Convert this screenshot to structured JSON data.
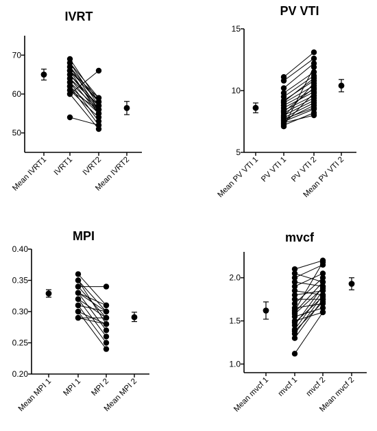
{
  "chart_data": [
    {
      "type": "scatter",
      "title": "IVRT",
      "ylim": [
        45,
        75
      ],
      "yticks": [
        50,
        60,
        70
      ],
      "categories": [
        "Mean IVRT1",
        "IVRT1",
        "IVRT2",
        "Mean IVRT2"
      ],
      "means": [
        {
          "category": "Mean IVRT1",
          "value": 65.0,
          "low": 63.6,
          "high": 66.4
        },
        {
          "category": "Mean IVRT2",
          "value": 56.4,
          "low": 54.7,
          "high": 58.1
        }
      ],
      "pairs": [
        [
          69,
          58
        ],
        [
          68,
          59
        ],
        [
          68,
          57
        ],
        [
          67,
          58
        ],
        [
          67,
          56
        ],
        [
          66,
          55
        ],
        [
          66,
          58
        ],
        [
          65,
          57
        ],
        [
          65,
          56
        ],
        [
          64,
          55
        ],
        [
          64,
          57
        ],
        [
          63,
          53
        ],
        [
          63,
          56
        ],
        [
          62,
          52
        ],
        [
          62,
          55
        ],
        [
          61,
          56
        ],
        [
          61,
          54
        ],
        [
          60,
          51
        ],
        [
          60,
          66
        ],
        [
          54,
          52
        ],
        [
          66,
          59
        ]
      ]
    },
    {
      "type": "scatter",
      "title": "PV VTI",
      "ylim": [
        5,
        15
      ],
      "yticks": [
        5,
        10,
        15
      ],
      "categories": [
        "Mean PV VTI 1",
        "PV VTI 1",
        "PV VTI 2",
        "Mean PV VTI 2"
      ],
      "means": [
        {
          "category": "Mean PV VTI 1",
          "value": 8.6,
          "low": 8.2,
          "high": 9.0
        },
        {
          "category": "Mean PV VTI 2",
          "value": 10.4,
          "low": 9.9,
          "high": 10.9
        }
      ],
      "pairs": [
        [
          11.1,
          13.1
        ],
        [
          10.8,
          12.6
        ],
        [
          10.2,
          12.2
        ],
        [
          9.8,
          11.5
        ],
        [
          9.5,
          11.2
        ],
        [
          9.2,
          10.8
        ],
        [
          9.0,
          10.4
        ],
        [
          8.8,
          10.1
        ],
        [
          8.6,
          9.9
        ],
        [
          8.4,
          9.6
        ],
        [
          8.2,
          9.4
        ],
        [
          8.0,
          9.2
        ],
        [
          7.9,
          10.6
        ],
        [
          7.8,
          9.0
        ],
        [
          7.6,
          8.8
        ],
        [
          7.5,
          8.5
        ],
        [
          7.4,
          8.0
        ],
        [
          7.3,
          9.8
        ],
        [
          7.2,
          8.2
        ],
        [
          7.1,
          11.9
        ],
        [
          8.3,
          10.2
        ],
        [
          9.1,
          11.0
        ],
        [
          7.7,
          8.6
        ]
      ]
    },
    {
      "type": "scatter",
      "title": "MPI",
      "ylim": [
        0.2,
        0.4
      ],
      "yticks": [
        0.2,
        0.25,
        0.3,
        0.35,
        0.4
      ],
      "ytick_labels": [
        "0.20",
        "0.25",
        "0.30",
        "0.35",
        "0.40"
      ],
      "categories": [
        "Mean MPI 1",
        "MPI 1",
        "MPI 2",
        "Mean MPI 2"
      ],
      "means": [
        {
          "category": "Mean MPI 1",
          "value": 0.329,
          "low": 0.323,
          "high": 0.335
        },
        {
          "category": "Mean MPI 2",
          "value": 0.291,
          "low": 0.284,
          "high": 0.299
        }
      ],
      "pairs": [
        [
          0.36,
          0.31
        ],
        [
          0.35,
          0.3
        ],
        [
          0.35,
          0.28
        ],
        [
          0.34,
          0.34
        ],
        [
          0.34,
          0.29
        ],
        [
          0.33,
          0.3
        ],
        [
          0.33,
          0.27
        ],
        [
          0.32,
          0.29
        ],
        [
          0.32,
          0.26
        ],
        [
          0.31,
          0.3
        ],
        [
          0.31,
          0.25
        ],
        [
          0.3,
          0.28
        ],
        [
          0.3,
          0.24
        ],
        [
          0.29,
          0.29
        ],
        [
          0.33,
          0.31
        ],
        [
          0.29,
          0.28
        ]
      ]
    },
    {
      "type": "scatter",
      "title": "mvcf",
      "ylim": [
        0.9,
        2.3
      ],
      "yticks": [
        1.0,
        1.5,
        2.0
      ],
      "ytick_labels": [
        "1.0",
        "1.5",
        "2.0"
      ],
      "categories": [
        "Mean mvcf 1",
        "mvcf 1",
        "mvcf 2",
        "Mean mvcf 2"
      ],
      "means": [
        {
          "category": "Mean mvcf 1",
          "value": 1.62,
          "low": 1.52,
          "high": 1.72
        },
        {
          "category": "Mean mvcf 2",
          "value": 1.93,
          "low": 1.86,
          "high": 2.0
        }
      ],
      "pairs": [
        [
          2.1,
          2.2
        ],
        [
          2.05,
          1.95
        ],
        [
          2.0,
          2.15
        ],
        [
          1.95,
          1.9
        ],
        [
          1.9,
          2.05
        ],
        [
          1.85,
          1.8
        ],
        [
          1.8,
          1.85
        ],
        [
          1.75,
          1.75
        ],
        [
          1.7,
          2.0
        ],
        [
          1.65,
          1.7
        ],
        [
          1.6,
          1.95
        ],
        [
          1.55,
          1.65
        ],
        [
          1.5,
          1.6
        ],
        [
          1.45,
          1.9
        ],
        [
          1.4,
          1.85
        ],
        [
          1.35,
          1.8
        ],
        [
          1.3,
          1.75
        ],
        [
          1.12,
          1.6
        ],
        [
          1.62,
          2.18
        ],
        [
          1.58,
          1.88
        ],
        [
          1.48,
          1.78
        ],
        [
          1.38,
          1.72
        ]
      ]
    }
  ]
}
